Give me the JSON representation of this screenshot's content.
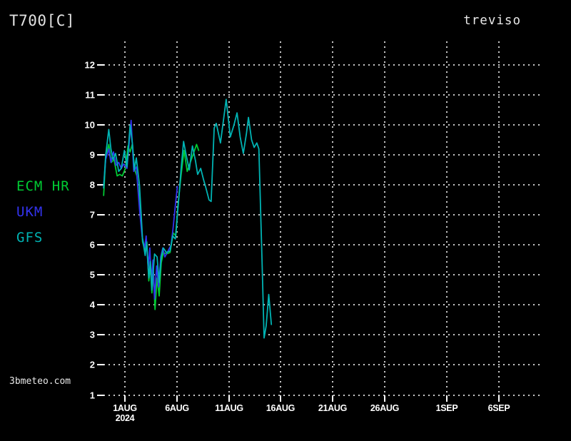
{
  "header": {
    "title": "T700[C]",
    "location": "treviso"
  },
  "watermark": "3bmeteo.com",
  "legend": {
    "items": [
      {
        "label": "ECM HR",
        "color": "#00cc33"
      },
      {
        "label": "UKM",
        "color": "#3333ee"
      },
      {
        "label": "GFS",
        "color": "#00b3b3"
      }
    ]
  },
  "chart_data": {
    "type": "line",
    "title": "T700[C]",
    "subtitle": "treviso",
    "background": "#000000",
    "grid_color": "#c9c9c9",
    "text_color": "#ffffff",
    "grid": true,
    "legend_position": "left",
    "ylim": [
      1,
      12
    ],
    "y_ticks": [
      1,
      2,
      3,
      4,
      5,
      6,
      7,
      8,
      9,
      10,
      11,
      12
    ],
    "x_axis_unit": "days_from_1aug2024",
    "x_ticks": [
      {
        "day": 0,
        "label": "1AUG",
        "sublabel": "2024"
      },
      {
        "day": 5,
        "label": "6AUG"
      },
      {
        "day": 10,
        "label": "11AUG"
      },
      {
        "day": 15,
        "label": "16AUG"
      },
      {
        "day": 20,
        "label": "21AUG"
      },
      {
        "day": 25,
        "label": "26AUG"
      },
      {
        "day": 31,
        "label": "1SEP"
      },
      {
        "day": 36,
        "label": "6SEP"
      }
    ],
    "series": [
      {
        "name": "ECM HR",
        "color": "#00cc33",
        "points": [
          [
            -2.05,
            7.65
          ],
          [
            -1.85,
            8.9
          ],
          [
            -1.55,
            9.35
          ],
          [
            -1.3,
            8.75
          ],
          [
            -1.05,
            8.85
          ],
          [
            -0.75,
            8.3
          ],
          [
            -0.5,
            8.35
          ],
          [
            -0.25,
            8.3
          ],
          [
            0.05,
            8.55
          ],
          [
            0.3,
            9.3
          ],
          [
            0.5,
            9.1
          ],
          [
            0.7,
            9.35
          ],
          [
            0.95,
            8.5
          ],
          [
            1.15,
            8.3
          ],
          [
            1.45,
            7.4
          ],
          [
            1.7,
            6.1
          ],
          [
            1.95,
            5.8
          ],
          [
            2.1,
            6.1
          ],
          [
            2.3,
            4.8
          ],
          [
            2.45,
            5.3
          ],
          [
            2.6,
            4.4
          ],
          [
            2.75,
            5.1
          ],
          [
            2.9,
            3.85
          ],
          [
            3.1,
            4.9
          ],
          [
            3.3,
            4.3
          ],
          [
            3.5,
            5.4
          ],
          [
            3.7,
            5.75
          ],
          [
            4.0,
            5.7
          ],
          [
            4.35,
            5.75
          ],
          [
            4.65,
            6.4
          ],
          [
            4.9,
            6.3
          ],
          [
            5.1,
            7.3
          ],
          [
            5.4,
            8.3
          ],
          [
            5.7,
            9.15
          ],
          [
            6.0,
            8.45
          ],
          [
            6.35,
            8.8
          ],
          [
            6.65,
            9.1
          ],
          [
            6.9,
            9.35
          ],
          [
            7.1,
            9.15
          ]
        ]
      },
      {
        "name": "UKM",
        "color": "#3333ee",
        "points": [
          [
            -2.05,
            7.95
          ],
          [
            -1.85,
            8.85
          ],
          [
            -1.55,
            9.2
          ],
          [
            -1.35,
            8.75
          ],
          [
            -1.1,
            9.1
          ],
          [
            -0.85,
            8.65
          ],
          [
            -0.6,
            8.75
          ],
          [
            -0.35,
            8.55
          ],
          [
            -0.1,
            8.7
          ],
          [
            0.2,
            8.55
          ],
          [
            0.6,
            10.15
          ],
          [
            0.85,
            8.45
          ],
          [
            1.1,
            8.6
          ],
          [
            1.4,
            7.2
          ],
          [
            1.65,
            6.3
          ],
          [
            1.9,
            5.9
          ],
          [
            2.05,
            6.3
          ],
          [
            2.25,
            5.2
          ],
          [
            2.4,
            5.9
          ],
          [
            2.55,
            4.8
          ],
          [
            2.7,
            5.5
          ],
          [
            2.85,
            4.2
          ],
          [
            3.05,
            5.3
          ],
          [
            3.25,
            4.6
          ],
          [
            3.45,
            5.6
          ],
          [
            3.65,
            5.9
          ],
          [
            3.85,
            5.6
          ],
          [
            4.15,
            5.8
          ],
          [
            4.45,
            6.0
          ],
          [
            4.65,
            6.6
          ],
          [
            4.85,
            7.3
          ],
          [
            5.05,
            7.95
          ]
        ]
      },
      {
        "name": "GFS",
        "color": "#00b3b3",
        "points": [
          [
            -2.05,
            7.9
          ],
          [
            -1.85,
            9.0
          ],
          [
            -1.55,
            9.85
          ],
          [
            -1.35,
            9.2
          ],
          [
            -1.15,
            8.85
          ],
          [
            -0.9,
            9.05
          ],
          [
            -0.6,
            8.45
          ],
          [
            -0.35,
            8.55
          ],
          [
            -0.05,
            9.15
          ],
          [
            0.2,
            8.6
          ],
          [
            0.5,
            10.0
          ],
          [
            0.75,
            9.3
          ],
          [
            0.9,
            8.5
          ],
          [
            1.1,
            8.9
          ],
          [
            1.4,
            8.0
          ],
          [
            1.7,
            6.2
          ],
          [
            1.95,
            5.65
          ],
          [
            2.1,
            6.1
          ],
          [
            2.3,
            4.9
          ],
          [
            2.45,
            5.45
          ],
          [
            2.6,
            4.5
          ],
          [
            2.85,
            5.7
          ],
          [
            3.1,
            5.6
          ],
          [
            3.3,
            4.75
          ],
          [
            3.5,
            5.6
          ],
          [
            3.7,
            5.9
          ],
          [
            4.0,
            5.75
          ],
          [
            4.35,
            5.8
          ],
          [
            4.6,
            6.3
          ],
          [
            4.85,
            6.2
          ],
          [
            5.05,
            7.0
          ],
          [
            5.2,
            7.6
          ],
          [
            5.4,
            8.5
          ],
          [
            5.65,
            9.45
          ],
          [
            5.9,
            9.0
          ],
          [
            6.2,
            8.5
          ],
          [
            6.5,
            9.3
          ],
          [
            6.8,
            8.8
          ],
          [
            7.0,
            8.35
          ],
          [
            7.3,
            8.55
          ],
          [
            7.55,
            8.2
          ],
          [
            7.8,
            7.9
          ],
          [
            8.1,
            7.5
          ],
          [
            8.3,
            7.45
          ],
          [
            8.6,
            9.9
          ],
          [
            8.8,
            10.05
          ],
          [
            9.2,
            9.4
          ],
          [
            9.75,
            10.85
          ],
          [
            10.15,
            9.6
          ],
          [
            10.5,
            10.0
          ],
          [
            10.8,
            10.4
          ],
          [
            11.1,
            9.6
          ],
          [
            11.4,
            9.05
          ],
          [
            11.7,
            9.7
          ],
          [
            11.9,
            10.25
          ],
          [
            12.2,
            9.5
          ],
          [
            12.45,
            9.25
          ],
          [
            12.7,
            9.4
          ],
          [
            12.9,
            9.2
          ],
          [
            13.2,
            5.5
          ],
          [
            13.4,
            2.9
          ],
          [
            13.6,
            3.3
          ],
          [
            13.85,
            4.35
          ],
          [
            14.1,
            3.35
          ]
        ]
      }
    ]
  }
}
